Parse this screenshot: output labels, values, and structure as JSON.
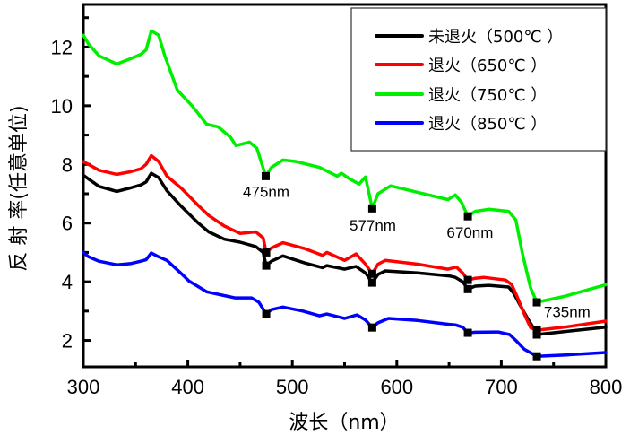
{
  "chart_data": {
    "type": "line",
    "title": "",
    "xlabel": "波长（nm）",
    "ylabel": "反 射 率(任意单位)",
    "xlim": [
      300,
      800
    ],
    "ylim": [
      1.1,
      13.45
    ],
    "xticks": [
      300,
      400,
      500,
      600,
      700,
      800
    ],
    "xtick_labels": [
      "300",
      "400",
      "500",
      "600",
      "700",
      "800"
    ],
    "yticks": [
      2,
      4,
      6,
      8,
      10,
      12
    ],
    "ytick_labels": [
      "2",
      "4",
      "6",
      "8",
      "10",
      "12"
    ],
    "grid": false,
    "legend_position": "top-right",
    "series": [
      {
        "name": "未退火（500℃ ）",
        "color": "#000000",
        "x": [
          300,
          305,
          315,
          332,
          345,
          355,
          360,
          365,
          372,
          380,
          394,
          410,
          420,
          435,
          450,
          465,
          472,
          475,
          480,
          491,
          512,
          529,
          533,
          550,
          561,
          570,
          576.5,
          582,
          589,
          620,
          650,
          656,
          663,
          668,
          675,
          688,
          707,
          712,
          718,
          726,
          733,
          734,
          760,
          800
        ],
        "y": [
          7.63,
          7.5,
          7.25,
          7.08,
          7.2,
          7.3,
          7.4,
          7.7,
          7.55,
          7.1,
          6.56,
          6.0,
          5.7,
          5.45,
          5.35,
          5.2,
          5.0,
          4.55,
          4.7,
          4.88,
          4.64,
          4.48,
          4.55,
          4.43,
          4.52,
          4.3,
          3.97,
          4.25,
          4.37,
          4.3,
          4.2,
          4.15,
          4.0,
          3.75,
          3.85,
          3.88,
          3.82,
          3.6,
          3.2,
          2.7,
          2.3,
          2.2,
          2.3,
          2.45
        ]
      },
      {
        "name": "退火（650℃ ）",
        "color": "#ff0000",
        "x": [
          300,
          305,
          315,
          332,
          345,
          355,
          360,
          365,
          372,
          380,
          394,
          410,
          420,
          435,
          450,
          465,
          472,
          475,
          480,
          491,
          512,
          529,
          533,
          550,
          561,
          570,
          576.5,
          582,
          589,
          620,
          649,
          657,
          663,
          668,
          675,
          683,
          704,
          710,
          715,
          722,
          728,
          734,
          760,
          800
        ],
        "y": [
          8.09,
          8.0,
          7.8,
          7.66,
          7.75,
          7.85,
          8.0,
          8.3,
          8.1,
          7.6,
          7.18,
          6.6,
          6.26,
          5.9,
          5.65,
          5.7,
          5.5,
          5.0,
          5.15,
          5.33,
          5.13,
          4.9,
          5.0,
          4.73,
          4.95,
          4.6,
          4.27,
          4.6,
          4.73,
          4.6,
          4.43,
          4.5,
          4.3,
          4.06,
          4.12,
          4.15,
          4.06,
          3.9,
          3.5,
          2.9,
          2.44,
          2.35,
          2.45,
          2.66
        ]
      },
      {
        "name": "退火（750℃ ）",
        "color": "#00ee00",
        "x": [
          300,
          305,
          315,
          332,
          345,
          355,
          360,
          365,
          372,
          378,
          390,
          404,
          418,
          429,
          441,
          446,
          459,
          466,
          471,
          474.5,
          480,
          491,
          503,
          526,
          543,
          547,
          555,
          564,
          570,
          576.5,
          582,
          594,
          620,
          649,
          656,
          662,
          668,
          675,
          688,
          707,
          714,
          720,
          728,
          734,
          760,
          800
        ],
        "y": [
          12.4,
          12.1,
          11.7,
          11.42,
          11.6,
          11.75,
          11.9,
          12.55,
          12.4,
          11.7,
          10.53,
          10.0,
          9.37,
          9.28,
          8.92,
          8.64,
          8.76,
          8.55,
          8.0,
          7.6,
          7.9,
          8.15,
          8.1,
          7.9,
          7.6,
          7.7,
          7.5,
          7.33,
          7.57,
          6.5,
          7.0,
          7.27,
          7.05,
          6.8,
          6.96,
          6.7,
          6.23,
          6.4,
          6.47,
          6.4,
          6.1,
          5.0,
          3.8,
          3.3,
          3.5,
          3.9
        ]
      },
      {
        "name": "退火（850℃ ）",
        "color": "#0000ff",
        "x": [
          300,
          305,
          315,
          332,
          345,
          355,
          360,
          365,
          372,
          380,
          394,
          401,
          418,
          445,
          461,
          468,
          475,
          480,
          491,
          510,
          526,
          533,
          550,
          562,
          570,
          576.5,
          582,
          592,
          620,
          650,
          656,
          663,
          668,
          675,
          697,
          708,
          714,
          722,
          734,
          760,
          800
        ],
        "y": [
          5.0,
          4.85,
          4.7,
          4.58,
          4.62,
          4.7,
          4.75,
          4.98,
          4.85,
          4.73,
          4.27,
          4.03,
          3.66,
          3.45,
          3.45,
          3.3,
          2.9,
          3.05,
          3.14,
          3.0,
          2.84,
          2.9,
          2.75,
          2.87,
          2.7,
          2.44,
          2.6,
          2.75,
          2.68,
          2.55,
          2.53,
          2.45,
          2.26,
          2.28,
          2.29,
          2.2,
          2.0,
          1.7,
          1.46,
          1.5,
          1.59
        ]
      }
    ],
    "markers": {
      "未退火（500℃ ）": [
        [
          475,
          4.55
        ],
        [
          576.5,
          3.97
        ],
        [
          668,
          3.75
        ],
        [
          734,
          2.2
        ]
      ],
      "退火（650℃ ）": [
        [
          475,
          5.0
        ],
        [
          576.5,
          4.27
        ],
        [
          668,
          4.06
        ],
        [
          734,
          2.35
        ]
      ],
      "退火（750℃ ）": [
        [
          474.5,
          7.6
        ],
        [
          576.5,
          6.5
        ],
        [
          668,
          6.23
        ],
        [
          734,
          3.3
        ]
      ],
      "退火（850℃ ）": [
        [
          475,
          2.9
        ],
        [
          576.5,
          2.44
        ],
        [
          668,
          2.26
        ],
        [
          734,
          1.46
        ]
      ]
    },
    "annotations": [
      {
        "text": "475nm",
        "x": 475,
        "y": 6.9
      },
      {
        "text": "577nm",
        "x": 577,
        "y": 5.75
      },
      {
        "text": "670nm",
        "x": 670,
        "y": 5.5
      },
      {
        "text": "735nm",
        "x": 763,
        "y": 2.8
      }
    ]
  }
}
